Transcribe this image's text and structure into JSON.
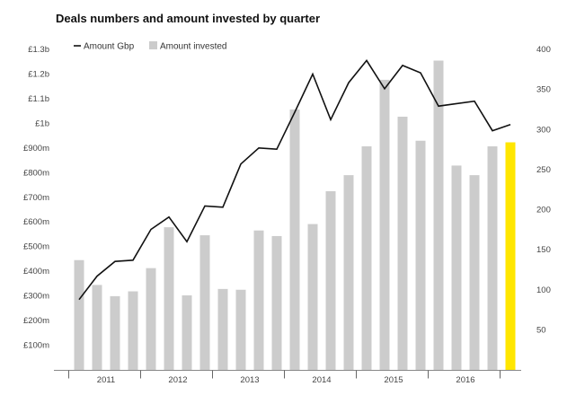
{
  "chart_data": {
    "type": "bar",
    "title": "Deals numbers and amount invested by quarter",
    "left_axis": {
      "range": [
        0,
        1300
      ],
      "ticks": [
        100,
        200,
        300,
        400,
        500,
        600,
        700,
        800,
        900,
        1000,
        1100,
        1200,
        1300
      ],
      "tick_labels": [
        "£100m",
        "£200m",
        "£300m",
        "£400m",
        "£500m",
        "£600m",
        "£700m",
        "£800m",
        "£900m",
        "£1b",
        "£1.1b",
        "£1.2b",
        "£1.3b"
      ]
    },
    "right_axis": {
      "range": [
        0,
        400
      ],
      "ticks": [
        50,
        100,
        150,
        200,
        250,
        300,
        350,
        400
      ],
      "tick_labels": [
        "50",
        "100",
        "150",
        "200",
        "250",
        "300",
        "350",
        "400"
      ]
    },
    "year_labels": [
      "2011",
      "2012",
      "2013",
      "2014",
      "2015",
      "2016"
    ],
    "quarters_per_year": 4,
    "legend": [
      {
        "label": "Amount Gbp",
        "kind": "line"
      },
      {
        "label": "Amount invested",
        "kind": "bar"
      }
    ],
    "series": [
      {
        "name": "Amount invested",
        "kind": "bar",
        "axis": "right",
        "color": "#cccccc",
        "values": [
          137,
          106,
          92,
          98,
          127,
          178,
          93,
          168,
          101,
          100,
          174,
          167,
          325,
          182,
          223,
          243,
          279,
          362,
          316,
          286,
          386,
          255,
          243,
          279,
          284
        ]
      },
      {
        "name": "Amount Gbp",
        "kind": "line",
        "axis": "left",
        "color": "#111111",
        "values": [
          285,
          380,
          440,
          445,
          570,
          620,
          520,
          665,
          660,
          835,
          900,
          895,
          1045,
          1200,
          1015,
          1165,
          1255,
          1140,
          1235,
          1205,
          1070,
          1080,
          1090,
          970,
          995
        ]
      }
    ],
    "highlight": {
      "index": 24,
      "color": "#ffe600"
    }
  }
}
